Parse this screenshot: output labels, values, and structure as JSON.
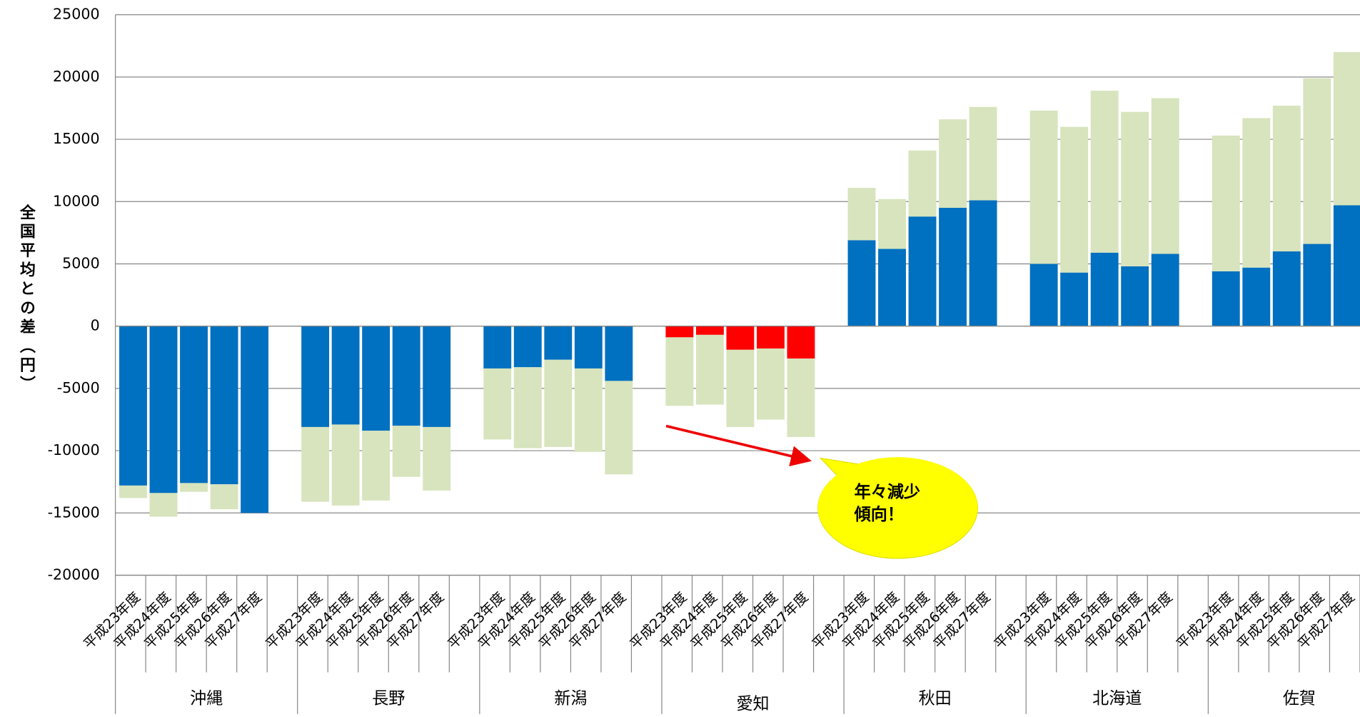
{
  "chart_data": {
    "type": "stacked_bar",
    "ylabel": "全国平均との差（円）",
    "groups": [
      "沖縄",
      "長野",
      "新潟",
      "愛知",
      "秋田",
      "北海道",
      "佐賀"
    ],
    "categories": [
      "平成23年度",
      "平成24年度",
      "平成25年度",
      "平成26年度",
      "平成27年度",
      "平成23年度",
      "平成24年度",
      "平成25年度",
      "平成26年度",
      "平成27年度",
      "平成23年度",
      "平成24年度",
      "平成25年度",
      "平成26年度",
      "平成27年度",
      "平成23年度",
      "平成24年度",
      "平成25年度",
      "平成26年度",
      "平成27年度",
      "平成23年度",
      "平成24年度",
      "平成25年度",
      "平成26年度",
      "平成27年度",
      "平成23年度",
      "平成24年度",
      "平成25年度",
      "平成26年度",
      "平成27年度",
      "平成23年度",
      "平成24年度",
      "平成25年度",
      "平成26年度",
      "平成27年度"
    ],
    "series": [
      {
        "color": "#0070c0",
        "values": [
          -12800,
          -13400,
          -12600,
          -12700,
          -15000,
          -8100,
          -7900,
          -8400,
          -8000,
          -8100,
          -3400,
          -3300,
          -2700,
          -3400,
          -4400,
          -900,
          -700,
          -1900,
          -1800,
          -2600,
          6900,
          6200,
          8800,
          9500,
          10100,
          5000,
          4300,
          5900,
          4800,
          5800,
          4400,
          4700,
          6000,
          6600,
          9700
        ]
      },
      {
        "color": "#d7e4bd",
        "values": [
          -1000,
          -1900,
          -700,
          -2000,
          0,
          -6000,
          -6500,
          -5600,
          -4100,
          -5100,
          -5700,
          -6500,
          -7000,
          -6700,
          -7500,
          -5500,
          -5600,
          -6200,
          -5700,
          -6300,
          4200,
          4000,
          5300,
          7100,
          7500,
          12300,
          11700,
          13000,
          12400,
          12500,
          10900,
          12000,
          11700,
          13300,
          12300
        ]
      }
    ],
    "highlight": {
      "group": 3,
      "color": "#ff0000"
    },
    "annotation": [
      "年々減少",
      "傾向！"
    ],
    "ylim": [
      -20000,
      25000
    ],
    "yticks": [
      -20000,
      -15000,
      -10000,
      -5000,
      0,
      5000,
      10000,
      15000,
      20000,
      25000
    ],
    "grid": true
  }
}
